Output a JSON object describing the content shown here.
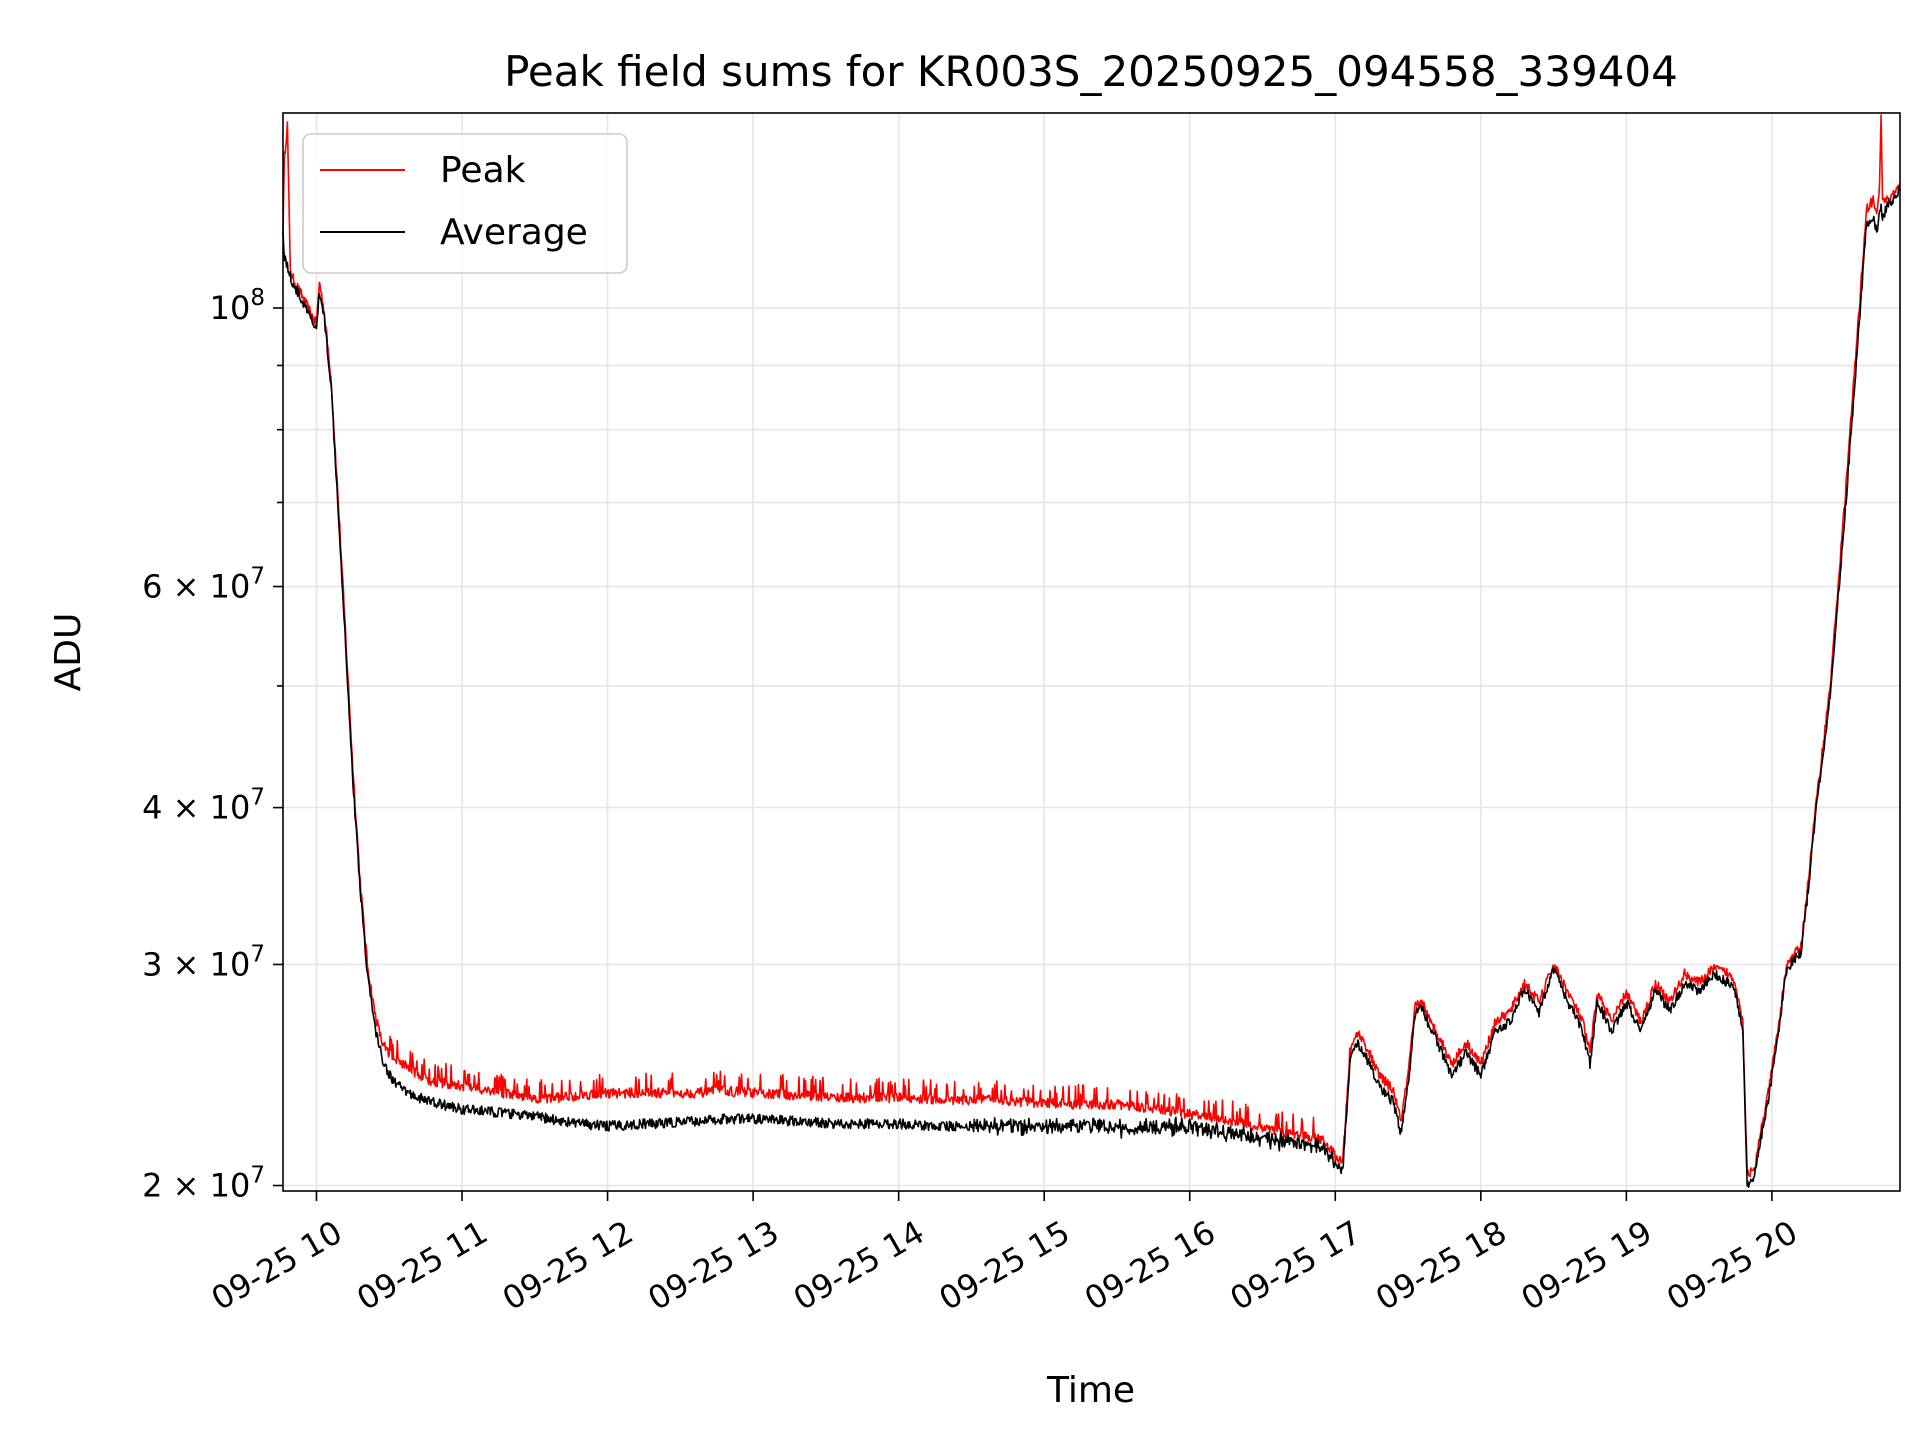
{
  "chart_data": {
    "type": "line",
    "title": "Peak field sums for KR003S_20250925_094558_339404",
    "xlabel": "Time",
    "ylabel": "ADU",
    "yscale": "log",
    "xlim": [
      9.77,
      20.88
    ],
    "ylim": [
      19800000,
      143000000
    ],
    "grid": true,
    "legend_position": "upper-left",
    "x_ticks": [
      {
        "value": 10,
        "label": "09-25 10"
      },
      {
        "value": 11,
        "label": "09-25 11"
      },
      {
        "value": 12,
        "label": "09-25 12"
      },
      {
        "value": 13,
        "label": "09-25 13"
      },
      {
        "value": 14,
        "label": "09-25 14"
      },
      {
        "value": 15,
        "label": "09-25 15"
      },
      {
        "value": 16,
        "label": "09-25 16"
      },
      {
        "value": 17,
        "label": "09-25 17"
      },
      {
        "value": 18,
        "label": "09-25 18"
      },
      {
        "value": 19,
        "label": "09-25 19"
      },
      {
        "value": 20,
        "label": "09-25 20"
      }
    ],
    "y_ticks_major": [
      {
        "value": 20000000,
        "mantissa": "2",
        "base": "10",
        "exp": "7"
      },
      {
        "value": 30000000,
        "mantissa": "3",
        "base": "10",
        "exp": "7"
      },
      {
        "value": 40000000,
        "mantissa": "4",
        "base": "10",
        "exp": "7"
      },
      {
        "value": 60000000,
        "mantissa": "6",
        "base": "10",
        "exp": "7"
      },
      {
        "value": 100000000,
        "mantissa": "",
        "base": "10",
        "exp": "8"
      }
    ],
    "y_ticks_minor": [
      50000000,
      70000000,
      80000000,
      90000000
    ],
    "series": [
      {
        "name": "Peak",
        "color": "#ff0000",
        "x": [
          9.77,
          9.78,
          9.8,
          9.82,
          9.83,
          9.85,
          10.0,
          10.02,
          10.05,
          10.1,
          10.15,
          10.2,
          10.25,
          10.3,
          10.35,
          10.4,
          10.45,
          10.5,
          10.55,
          10.6,
          10.7,
          10.8,
          11.0,
          11.2,
          11.5,
          11.8,
          12.0,
          12.3,
          12.6,
          12.8,
          13.0,
          13.3,
          13.6,
          14.0,
          14.3,
          14.6,
          14.9,
          15.2,
          15.5,
          15.8,
          16.0,
          16.3,
          16.6,
          16.9,
          17.05,
          17.1,
          17.15,
          17.2,
          17.3,
          17.4,
          17.45,
          17.5,
          17.55,
          17.6,
          17.65,
          17.7,
          17.8,
          17.9,
          18.0,
          18.1,
          18.2,
          18.3,
          18.4,
          18.5,
          18.6,
          18.7,
          18.75,
          18.8,
          18.9,
          19.0,
          19.1,
          19.2,
          19.3,
          19.4,
          19.5,
          19.6,
          19.7,
          19.75,
          19.8,
          19.83,
          19.88,
          19.92,
          19.97,
          20.05,
          20.1,
          20.2,
          20.25,
          20.3,
          20.4,
          20.5,
          20.6,
          20.65,
          20.7,
          20.72,
          20.74,
          20.75,
          20.76,
          20.8,
          20.88
        ],
        "values": [
          115000000,
          132000000,
          140000000,
          108000000,
          106000000,
          105000000,
          97000000,
          105000000,
          100000000,
          88000000,
          70000000,
          55000000,
          43000000,
          35000000,
          30000000,
          27500000,
          26000000,
          25500000,
          25200000,
          25000000,
          24500000,
          24200000,
          24000000,
          23800000,
          23400000,
          23600000,
          23700000,
          23700000,
          23700000,
          23800000,
          23700000,
          23600000,
          23500000,
          23500000,
          23400000,
          23400000,
          23300000,
          23200000,
          23200000,
          23000000,
          22800000,
          22500000,
          22100000,
          21800000,
          20800000,
          25500000,
          26500000,
          26000000,
          24500000,
          23800000,
          22500000,
          24500000,
          27800000,
          28000000,
          27000000,
          26500000,
          25000000,
          26000000,
          25000000,
          27000000,
          27500000,
          29000000,
          28000000,
          30000000,
          28500000,
          27000000,
          25500000,
          28500000,
          27000000,
          28500000,
          27000000,
          29000000,
          28000000,
          29500000,
          29000000,
          29800000,
          29500000,
          29000000,
          27000000,
          20500000,
          20500000,
          22000000,
          23500000,
          27000000,
          30000000,
          31000000,
          35000000,
          40000000,
          50000000,
          70000000,
          100000000,
          120000000,
          122000000,
          118000000,
          125000000,
          143000000,
          122000000,
          122000000,
          125000000
        ]
      },
      {
        "name": "Average",
        "color": "#000000",
        "x": [
          9.77,
          9.78,
          9.8,
          9.82,
          9.83,
          9.85,
          10.0,
          10.02,
          10.05,
          10.1,
          10.15,
          10.2,
          10.25,
          10.3,
          10.35,
          10.4,
          10.45,
          10.5,
          10.55,
          10.6,
          10.7,
          10.8,
          11.0,
          11.2,
          11.5,
          11.8,
          12.0,
          12.3,
          12.6,
          12.8,
          13.0,
          13.3,
          13.6,
          14.0,
          14.3,
          14.6,
          14.9,
          15.2,
          15.5,
          15.8,
          16.0,
          16.3,
          16.6,
          16.9,
          17.05,
          17.1,
          17.15,
          17.2,
          17.3,
          17.4,
          17.45,
          17.5,
          17.55,
          17.6,
          17.65,
          17.7,
          17.8,
          17.9,
          18.0,
          18.1,
          18.2,
          18.3,
          18.4,
          18.5,
          18.6,
          18.7,
          18.75,
          18.8,
          18.9,
          19.0,
          19.1,
          19.2,
          19.3,
          19.4,
          19.5,
          19.6,
          19.7,
          19.75,
          19.8,
          19.83,
          19.88,
          19.92,
          19.97,
          20.05,
          20.1,
          20.2,
          20.25,
          20.3,
          20.4,
          20.5,
          20.6,
          20.65,
          20.7,
          20.72,
          20.74,
          20.75,
          20.76,
          20.8,
          20.88
        ],
        "values": [
          115000000,
          110000000,
          108000000,
          106000000,
          105000000,
          104000000,
          96000000,
          103000000,
          99000000,
          87000000,
          69000000,
          54000000,
          42000000,
          34500000,
          29500000,
          26800000,
          25300000,
          24500000,
          24100000,
          23800000,
          23500000,
          23300000,
          23000000,
          22900000,
          22700000,
          22400000,
          22300000,
          22400000,
          22500000,
          22600000,
          22600000,
          22500000,
          22400000,
          22400000,
          22300000,
          22300000,
          22300000,
          22300000,
          22200000,
          22300000,
          22300000,
          22000000,
          21700000,
          21500000,
          20500000,
          25000000,
          26000000,
          25500000,
          24000000,
          23300000,
          22000000,
          24000000,
          27500000,
          27700000,
          26700000,
          26000000,
          24500000,
          25500000,
          24500000,
          26500000,
          27000000,
          28700000,
          27500000,
          29700000,
          28000000,
          26500000,
          25000000,
          28000000,
          26500000,
          28000000,
          26500000,
          28700000,
          27500000,
          29000000,
          28500000,
          29500000,
          29000000,
          28500000,
          26500000,
          20000000,
          20300000,
          21700000,
          23200000,
          26700000,
          29700000,
          30700000,
          34500000,
          39500000,
          49000000,
          68000000,
          97000000,
          117000000,
          118000000,
          115000000,
          119000000,
          120000000,
          118000000,
          121000000,
          124000000
        ]
      }
    ]
  }
}
